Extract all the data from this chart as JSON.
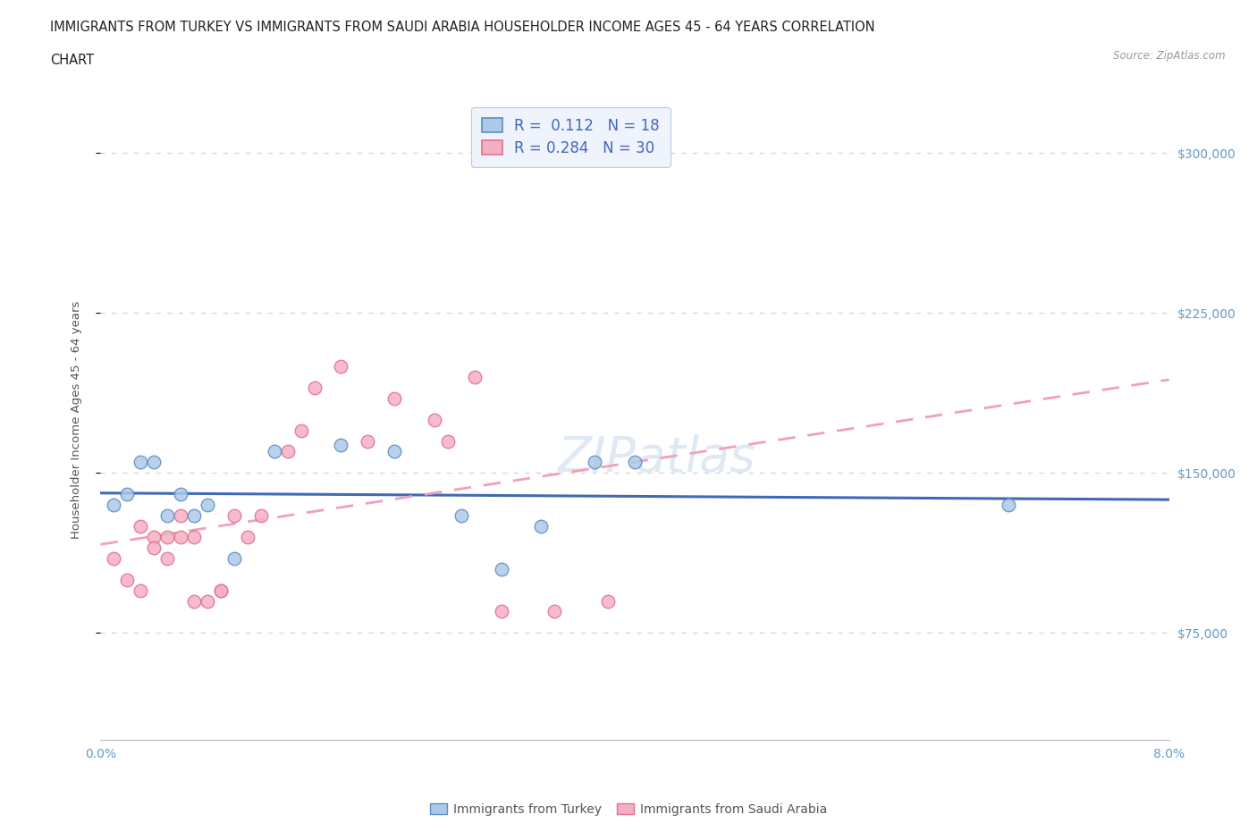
{
  "title_line1": "IMMIGRANTS FROM TURKEY VS IMMIGRANTS FROM SAUDI ARABIA HOUSEHOLDER INCOME AGES 45 - 64 YEARS CORRELATION",
  "title_line2": "CHART",
  "source": "Source: ZipAtlas.com",
  "ylabel": "Householder Income Ages 45 - 64 years",
  "xlim": [
    0.0,
    0.08
  ],
  "ylim": [
    25000,
    325000
  ],
  "xticks": [
    0.0,
    0.01,
    0.02,
    0.03,
    0.04,
    0.05,
    0.06,
    0.07,
    0.08
  ],
  "xtick_labels": [
    "0.0%",
    "",
    "",
    "",
    "",
    "",
    "",
    "",
    "8.0%"
  ],
  "yticks": [
    75000,
    150000,
    225000,
    300000
  ],
  "ytick_labels": [
    "$75,000",
    "$150,000",
    "$225,000",
    "$300,000"
  ],
  "turkey_color": "#adc9e8",
  "saudi_color": "#f5afc3",
  "turkey_edge": "#5b8ec4",
  "saudi_edge": "#e07090",
  "trend_turkey_color": "#4169b8",
  "trend_saudi_color": "#f0a0b8",
  "R_turkey": 0.112,
  "N_turkey": 18,
  "R_saudi": 0.284,
  "N_saudi": 30,
  "legend_label_turkey": "Immigrants from Turkey",
  "legend_label_saudi": "Immigrants from Saudi Arabia",
  "turkey_x": [
    0.001,
    0.002,
    0.003,
    0.004,
    0.005,
    0.006,
    0.007,
    0.008,
    0.01,
    0.013,
    0.018,
    0.022,
    0.027,
    0.03,
    0.033,
    0.037,
    0.04,
    0.068
  ],
  "turkey_y": [
    135000,
    140000,
    155000,
    155000,
    130000,
    140000,
    130000,
    135000,
    110000,
    160000,
    163000,
    160000,
    130000,
    105000,
    125000,
    155000,
    155000,
    135000
  ],
  "saudi_x": [
    0.001,
    0.002,
    0.003,
    0.003,
    0.004,
    0.004,
    0.005,
    0.005,
    0.006,
    0.006,
    0.007,
    0.007,
    0.008,
    0.009,
    0.009,
    0.01,
    0.011,
    0.012,
    0.014,
    0.015,
    0.016,
    0.018,
    0.02,
    0.022,
    0.025,
    0.026,
    0.028,
    0.03,
    0.034,
    0.038
  ],
  "saudi_y": [
    110000,
    100000,
    125000,
    95000,
    120000,
    115000,
    110000,
    120000,
    120000,
    130000,
    120000,
    90000,
    90000,
    95000,
    95000,
    130000,
    120000,
    130000,
    160000,
    170000,
    190000,
    200000,
    165000,
    185000,
    175000,
    165000,
    195000,
    85000,
    85000,
    90000
  ],
  "background_color": "#ffffff",
  "grid_color": "#d0d0d0",
  "title_color": "#222222",
  "axis_label_color": "#555555",
  "tick_color": "#6699cc",
  "legend_box_color": "#eef3fc",
  "legend_text_color": "#4466bb",
  "watermark_text": "ZIPatlas",
  "watermark_color": "#c5d8ee",
  "watermark_alpha": 0.55
}
